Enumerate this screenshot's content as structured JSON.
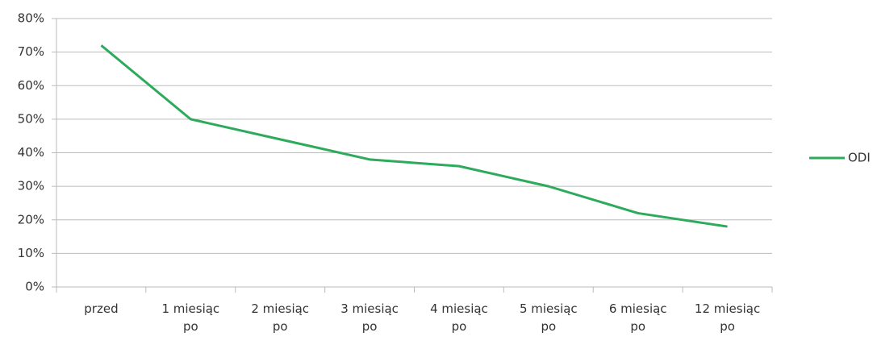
{
  "chart_data": {
    "type": "line",
    "categories": [
      "przed",
      "1 miesiąc po",
      "2 miesiąc po",
      "3 miesiąc po",
      "4 miesiąc po",
      "5 miesiąc po",
      "6 miesiąc po",
      "12 miesiąc po"
    ],
    "series": [
      {
        "name": "ODI",
        "color": "#2daa5c",
        "values": [
          72,
          50,
          44,
          38,
          36,
          30,
          22,
          18
        ]
      }
    ],
    "ylim": [
      0,
      80
    ],
    "yticks": [
      {
        "value": 0,
        "label": "0%"
      },
      {
        "value": 10,
        "label": "10%"
      },
      {
        "value": 20,
        "label": "20%"
      },
      {
        "value": 30,
        "label": "30%"
      },
      {
        "value": 40,
        "label": "40%"
      },
      {
        "value": 50,
        "label": "50%"
      },
      {
        "value": 60,
        "label": "60%"
      },
      {
        "value": 70,
        "label": "70%"
      },
      {
        "value": 80,
        "label": "80%"
      }
    ],
    "grid": true,
    "legend": "right"
  }
}
